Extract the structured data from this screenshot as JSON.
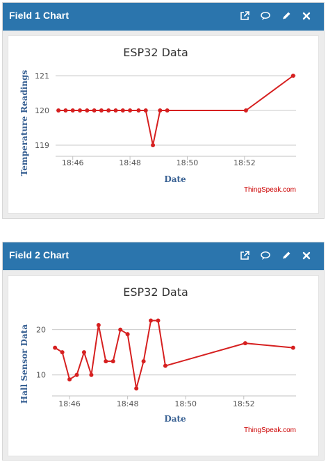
{
  "widgets": [
    {
      "header_title": "Field 1 Chart",
      "icons": [
        "external-link-icon",
        "comment-icon",
        "pencil-icon",
        "close-icon"
      ],
      "credit": "ThingSpeak.com"
    },
    {
      "header_title": "Field 2 Chart",
      "icons": [
        "external-link-icon",
        "comment-icon",
        "pencil-icon",
        "close-icon"
      ],
      "credit": "ThingSpeak.com"
    }
  ],
  "colors": {
    "header_bg": "#2b75ad",
    "series": "#d62020",
    "axis_label": "#3a6294",
    "credit": "#cc0000",
    "grid": "#c8c8c8"
  },
  "chart_data": [
    {
      "type": "line",
      "title": "ESP32 Data",
      "xlabel": "Date",
      "ylabel": "Temperature Readings",
      "x_ticks": [
        "18:46",
        "18:48",
        "18:50",
        "18:52"
      ],
      "y_ticks": [
        119,
        120,
        121
      ],
      "ylim": [
        118.7,
        121.3
      ],
      "xlim_minutes": [
        45.4,
        53.8
      ],
      "grid": true,
      "series": [
        {
          "x": [
            "18:45.5",
            "18:45.8",
            "18:46.0",
            "18:46.3",
            "18:46.5",
            "18:46.8",
            "18:47.0",
            "18:47.3",
            "18:47.5",
            "18:47.8",
            "18:48.0",
            "18:48.3",
            "18:48.6",
            "18:48.8",
            "18:49.0",
            "18:49.3",
            "18:52.1",
            "18:53.7"
          ],
          "x_minutes": [
            45.5,
            45.75,
            46.0,
            46.25,
            46.5,
            46.75,
            47.0,
            47.25,
            47.5,
            47.75,
            48.0,
            48.3,
            48.55,
            48.8,
            49.05,
            49.3,
            52.05,
            53.7
          ],
          "values": [
            120,
            120,
            120,
            120,
            120,
            120,
            120,
            120,
            120,
            120,
            120,
            120,
            120,
            119,
            120,
            120,
            120,
            121
          ]
        }
      ]
    },
    {
      "type": "line",
      "title": "ESP32 Data",
      "xlabel": "Date",
      "ylabel": "Hall Sensor Data",
      "x_ticks": [
        "18:46",
        "18:48",
        "18:50",
        "18:52"
      ],
      "y_ticks": [
        10,
        20
      ],
      "ylim": [
        5.5,
        25
      ],
      "xlim_minutes": [
        45.4,
        53.8
      ],
      "grid": true,
      "series": [
        {
          "x": [
            "18:45.5",
            "18:45.8",
            "18:46.0",
            "18:46.3",
            "18:46.5",
            "18:46.8",
            "18:47.0",
            "18:47.3",
            "18:47.5",
            "18:47.8",
            "18:48.0",
            "18:48.3",
            "18:48.6",
            "18:48.8",
            "18:49.0",
            "18:49.3",
            "18:52.1",
            "18:53.7"
          ],
          "x_minutes": [
            45.5,
            45.75,
            46.0,
            46.25,
            46.5,
            46.75,
            47.0,
            47.25,
            47.5,
            47.75,
            48.0,
            48.3,
            48.55,
            48.8,
            49.05,
            49.3,
            52.05,
            53.7
          ],
          "values": [
            16,
            15,
            9,
            10,
            15,
            10,
            21,
            13,
            13,
            20,
            19,
            7,
            13,
            22,
            22,
            12,
            17,
            16
          ]
        }
      ]
    }
  ]
}
